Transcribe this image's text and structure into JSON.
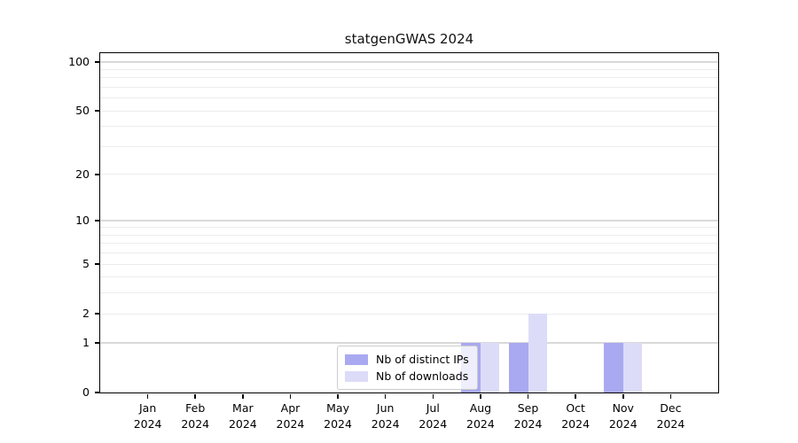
{
  "chart_data": {
    "type": "bar",
    "title": "statgenGWAS 2024",
    "year": "2024",
    "months": [
      "Jan",
      "Feb",
      "Mar",
      "Apr",
      "May",
      "Jun",
      "Jul",
      "Aug",
      "Sep",
      "Oct",
      "Nov",
      "Dec"
    ],
    "categories": [
      "Jan 2024",
      "Feb 2024",
      "Mar 2024",
      "Apr 2024",
      "May 2024",
      "Jun 2024",
      "Jul 2024",
      "Aug 2024",
      "Sep 2024",
      "Oct 2024",
      "Nov 2024",
      "Dec 2024"
    ],
    "series": [
      {
        "name": "Nb of distinct IPs",
        "color": "#a9a9f1",
        "values": [
          0,
          0,
          0,
          0,
          0,
          0,
          0,
          1,
          1,
          0,
          1,
          0
        ]
      },
      {
        "name": "Nb of downloads",
        "color": "#dcdcf8",
        "values": [
          0,
          0,
          0,
          0,
          0,
          0,
          0,
          1,
          2,
          0,
          1,
          0
        ]
      }
    ],
    "yscale": "log1p",
    "ylim": [
      0,
      113
    ],
    "y_ticks": [
      0,
      1,
      2,
      5,
      10,
      20,
      50,
      100
    ],
    "grid": {
      "major": [
        1,
        10,
        100
      ],
      "minor": [
        2,
        3,
        4,
        5,
        6,
        7,
        8,
        9,
        20,
        30,
        40,
        50,
        60,
        70,
        80,
        90
      ],
      "major_color": "#d9d9d9",
      "minor_color": "#ececec"
    },
    "legend_position": "lower center",
    "xlabel": "",
    "ylabel": ""
  }
}
